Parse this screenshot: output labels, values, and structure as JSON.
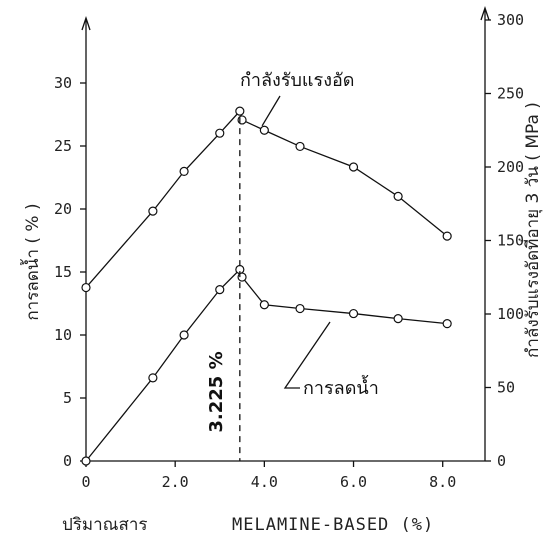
{
  "chart_data": {
    "type": "line",
    "xlabel_prefix": "ปริมาณสาร",
    "xlabel": "MELAMINE-BASED (%)",
    "ylabel_left": "การลดน้ำ ( % )",
    "ylabel_right": "กำลังรับแรงอัดที่อายุ 3 วัน ( MPa )",
    "xlim": [
      0,
      8.5
    ],
    "ylim_left": [
      0,
      35
    ],
    "ylim_right": [
      0,
      300
    ],
    "x_ticks": [
      "0",
      "2.0",
      "4.0",
      "6.0",
      "8.0"
    ],
    "x_tick_values": [
      0,
      2,
      4,
      6,
      8
    ],
    "y_left_ticks": [
      "0",
      "5",
      "10",
      "15",
      "20",
      "25",
      "30"
    ],
    "y_left_tick_values": [
      0,
      5,
      10,
      15,
      20,
      25,
      30
    ],
    "y_right_ticks": [
      "0",
      "50",
      "100",
      "150",
      "200",
      "250",
      "300"
    ],
    "y_right_tick_values": [
      0,
      50,
      100,
      150,
      200,
      250,
      300
    ],
    "series": [
      {
        "name": "กำลังรับแรงอัด",
        "axis": "right",
        "x": [
          0,
          1.5,
          2.2,
          3.0,
          3.45,
          3.5,
          4.0,
          4.8,
          6.0,
          7.0,
          8.1
        ],
        "y": [
          118,
          170,
          197,
          223,
          238,
          232,
          225,
          214,
          200,
          180,
          153
        ]
      },
      {
        "name": "การลดน้ำ",
        "axis": "left",
        "x": [
          0,
          1.5,
          2.2,
          3.0,
          3.45,
          3.5,
          4.0,
          4.8,
          6.0,
          7.0,
          8.1
        ],
        "y": [
          0,
          6.6,
          10.0,
          13.6,
          15.2,
          14.6,
          12.4,
          12.1,
          11.7,
          11.3,
          10.9
        ]
      }
    ],
    "annotations": [
      {
        "text": "3.225 %",
        "x": 3.225
      }
    ],
    "grid": false
  }
}
